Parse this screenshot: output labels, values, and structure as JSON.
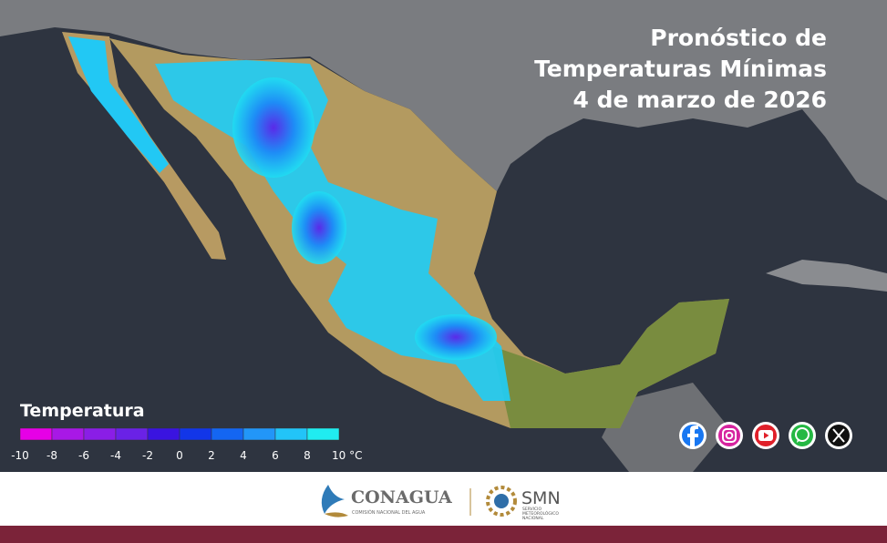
{
  "header": {
    "title_lines": [
      "Pronóstico de",
      "Temperaturas Mínimas",
      "4 de marzo de 2026"
    ]
  },
  "legend": {
    "title": "Temperatura",
    "colors": [
      "#e600e6",
      "#a818e6",
      "#8a1ee6",
      "#6a22e6",
      "#3a14e0",
      "#1236e8",
      "#1466f2",
      "#2296f8",
      "#22c4f8",
      "#20ecf0"
    ],
    "tick_labels": [
      "-10",
      "-8",
      "-6",
      "-4",
      "-2",
      "0",
      "2",
      "4",
      "6",
      "8",
      "10 °C"
    ]
  },
  "footer": {
    "conagua": "CONAGUA",
    "conagua_sub": "COMISIÓN NACIONAL DEL AGUA",
    "smn": "SMN",
    "smn_sub": [
      "SERVICIO",
      "METEOROLÓGICO",
      "NACIONAL"
    ]
  }
}
